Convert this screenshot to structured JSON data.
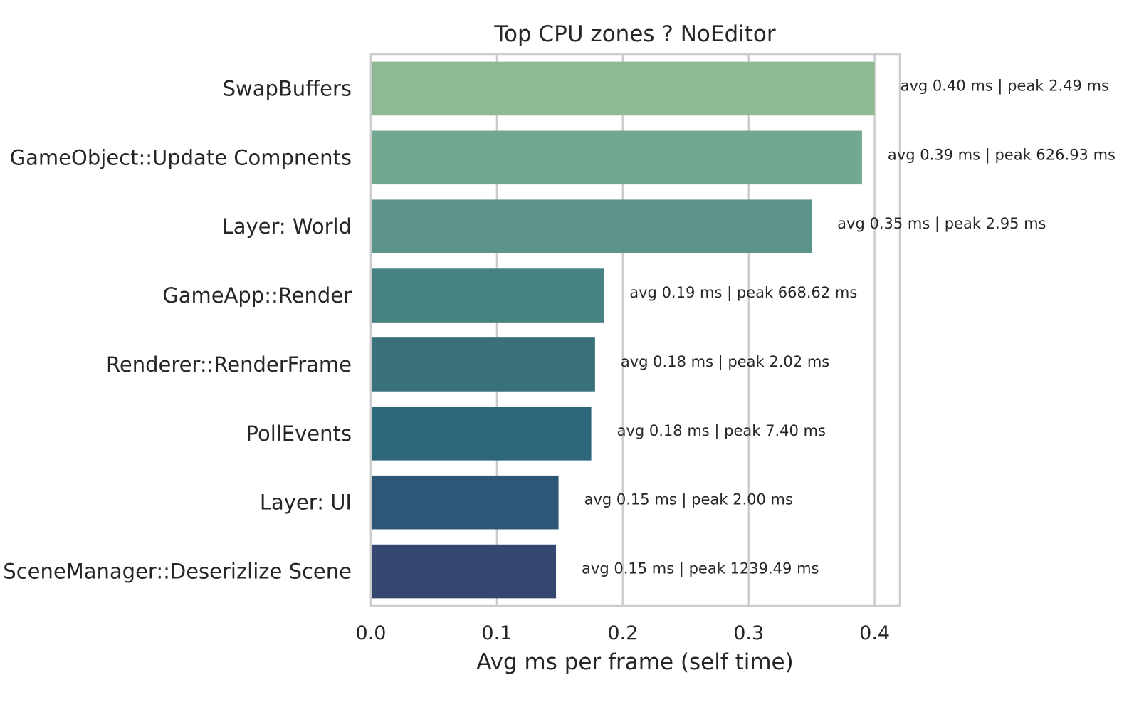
{
  "chart_data": {
    "type": "bar",
    "orientation": "horizontal",
    "title": "Top CPU zones ? NoEditor",
    "xlabel": "Avg ms per frame (self time)",
    "ylabel": "",
    "xlim": [
      0,
      0.42
    ],
    "xticks": [
      0.0,
      0.1,
      0.2,
      0.3,
      0.4
    ],
    "xtick_labels": [
      "0.0",
      "0.1",
      "0.2",
      "0.3",
      "0.4"
    ],
    "grid": "vertical",
    "categories": [
      "SwapBuffers",
      "GameObject::Update Compnents",
      "Layer: World",
      "GameApp::Render",
      "Renderer::RenderFrame",
      "PollEvents",
      "Layer: UI",
      "SceneManager::Deserizlize Scene"
    ],
    "values": [
      0.4,
      0.39,
      0.35,
      0.185,
      0.178,
      0.175,
      0.149,
      0.147
    ],
    "peaks": [
      2.49,
      626.93,
      2.95,
      668.62,
      2.02,
      7.4,
      2.0,
      1239.49
    ],
    "data_labels": [
      "avg 0.40 ms | peak 2.49 ms",
      "avg 0.39 ms | peak 626.93 ms",
      "avg 0.35 ms | peak 2.95 ms",
      "avg 0.19 ms | peak 668.62 ms",
      "avg 0.18 ms | peak 2.02 ms",
      "avg 0.18 ms | peak 7.40 ms",
      "avg 0.15 ms | peak 2.00 ms",
      "avg 0.15 ms | peak 1239.49 ms"
    ],
    "colors": [
      "#8fb894",
      "#71a88f",
      "#5c9489",
      "#46827f",
      "#38717b",
      "#2c677b",
      "#2c5776",
      "#344770"
    ]
  }
}
